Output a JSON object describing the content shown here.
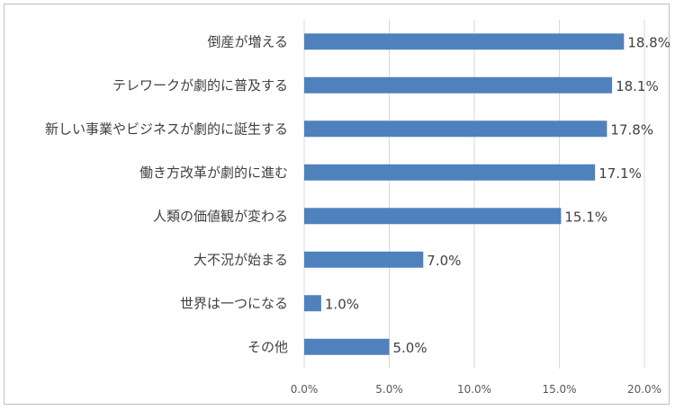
{
  "chart_data": {
    "type": "bar",
    "orientation": "horizontal",
    "title": "",
    "xlabel": "",
    "ylabel": "",
    "categories": [
      "倒産が増える",
      "テレワークが劇的に普及する",
      "新しい事業やビジネスが劇的に誕生する",
      "働き方改革が劇的に進む",
      "人類の価値観が変わる",
      "大不況が始まる",
      "世界は一つになる",
      "その他"
    ],
    "values": [
      18.8,
      18.1,
      17.8,
      17.1,
      15.1,
      7.0,
      1.0,
      5.0
    ],
    "value_labels": [
      "18.8%",
      "18.1%",
      "17.8%",
      "17.1%",
      "15.1%",
      "7.0%",
      "1.0%",
      "5.0%"
    ],
    "xlim": [
      0,
      20
    ],
    "x_ticks": [
      0,
      5,
      10,
      15,
      20
    ],
    "x_tick_labels": [
      "0.0%",
      "5.0%",
      "10.0%",
      "15.0%",
      "20.0%"
    ],
    "grid": "vertical",
    "legend": "none",
    "bar_color": "#4f81bd",
    "grid_color": "#d9d9d9"
  }
}
